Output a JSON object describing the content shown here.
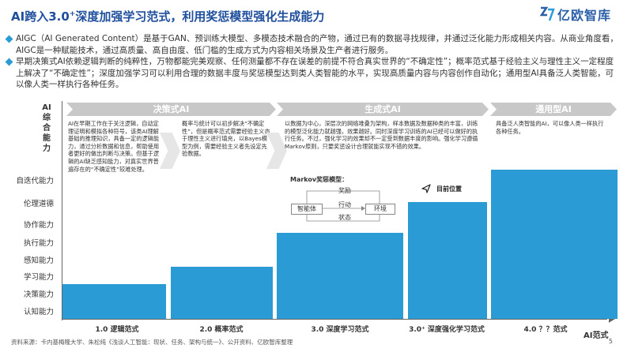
{
  "header": {
    "title_main": "AI跨入3.0",
    "title_sup": "+",
    "title_rest": "深度加强学习范式，利用奖惩模型强化生成能力",
    "logo_text": "亿欧智库"
  },
  "bullets": [
    "AIGC（AI Generated Content）是基于GAN、预训练大模型、多模态技术融合的产物，通过已有的数据寻找规律，并通过泛化能力形成相关内容。从商业角度看，AIGC是一种赋能技术，通过高质量、高自由度、低门槛的生成方式为内容相关场景及生产者进行服务。",
    "早期决策式AI依赖逻辑判断的纯粹性，万物都能完美观察、任何测量都不存在误差的前提不符合真实世界的“不确定性”；概率范式基于经验主义与理性主义一定程度上解决了“不确定性”；深度加强学习可以利用合理的数据丰度与奖惩模型达到类人类智能的水平，实现高质量内容与内容创作自动化；通用型AI具备泛人类智能，可以像人类一样执行各种任务。"
  ],
  "y_axis": {
    "title": "AI综合能力",
    "levels": [
      "自迭代能力",
      "伦理道德",
      "协作能力",
      "执行能力",
      "感知能力",
      "学习能力",
      "决策能力",
      "认知能力"
    ]
  },
  "x_axis": {
    "title": "AI范式",
    "stages": [
      "1.0 逻辑范式",
      "2.0 概率范式",
      "3.0 深度学习范式",
      "3.0⁺ 深度强化学习范式",
      "4.0 ？？范式"
    ]
  },
  "phases": [
    "决策式AI",
    "生成式AI",
    "通用型AI"
  ],
  "descriptions": {
    "logic": "AI在早期工作在于关注逻辑，自动定理证明和模拟各种符号，该类AI理解基础的推理知识，具备一定的逻辑能力，通过分析数据和信息，帮助使用者更好的做出判断与决策。但基于逻辑的AI缺乏感知能力，对真实世界普遍存在的“不确定性”较难处理。",
    "probability": "概率与统计可以初步解决“不确定性”，但是概率范式需要经验主义亦于理性主义进行填充，以Bayes模型为例，需要经验主义者先设定先验数据。",
    "deep": "以数据为中心，深层次的网络堆叠为架构，样本数据及数据种类的丰富，训练的模型泛化能力就越强，效果越好。同时深度学习训练的AI已经可以做好的执行任务。不过，强化学习的效果却不一定受到数据丰度的影响。强化学习遵循Markov原则，只要奖惩设计合理就能实现不错的效果。",
    "general": "具备泛人类智能的AI，可以像人类一样执行各种任务。"
  },
  "markov": {
    "title": "Markov奖惩模型：",
    "reward": "奖励",
    "agent": "智能体",
    "action": "行动",
    "environment": "环境",
    "state": "状态"
  },
  "current_position_label": "目前位置",
  "footer": {
    "source": "资料来源：卡内基梅隆大学、朱松纯《浅谈人工智能：现状、任务、架构与统一》、公开资料、亿欧智库整理",
    "page": "5"
  },
  "colors": {
    "step": "#2b9bd6",
    "title": "#1f4e9c",
    "phase": "#c8c8c8"
  }
}
